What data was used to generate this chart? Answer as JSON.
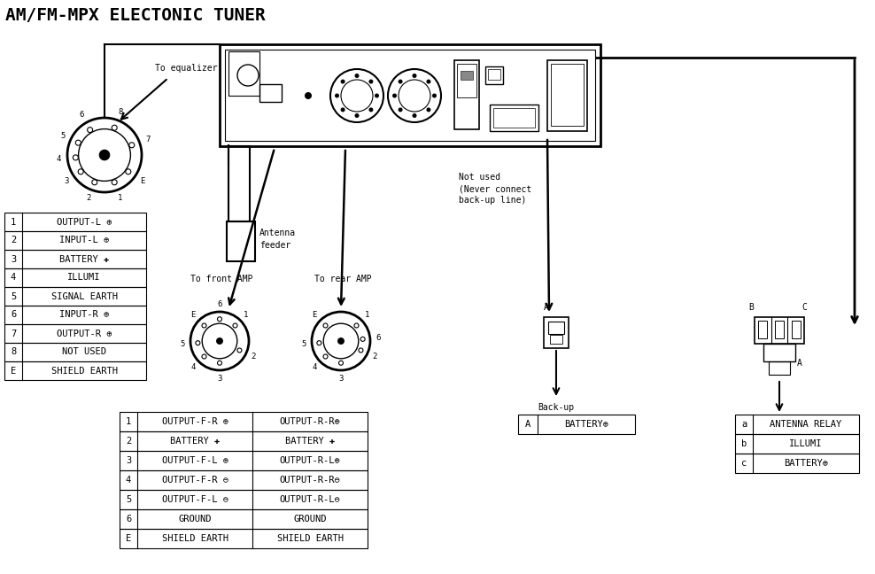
{
  "title": "AM/FM-MPX ELECTONIC TUNER",
  "bg_color": "#ffffff",
  "lc": "#000000",
  "title_fontsize": 14,
  "label_fontsize": 7.5,
  "small_fontsize": 7,
  "left_table_rows": [
    [
      "1",
      "OUTPUT-L ⊕"
    ],
    [
      "2",
      "INPUT-L ⊕"
    ],
    [
      "3",
      "BATTERY ✚"
    ],
    [
      "4",
      "ILLUMI"
    ],
    [
      "5",
      "SIGNAL EARTH"
    ],
    [
      "6",
      "INPUT-R ⊕"
    ],
    [
      "7",
      "OUTPUT-R ⊕"
    ],
    [
      "8",
      "NOT USED"
    ],
    [
      "E",
      "SHIELD EARTH"
    ]
  ],
  "center_table_rows": [
    [
      "1",
      "OUTPUT-F-R ⊕",
      "OUTPUT-R-R⊕"
    ],
    [
      "2",
      "BATTERY ✚",
      "BATTERY ✚"
    ],
    [
      "3",
      "OUTPUT-F-L ⊕",
      "OUTPUT-R-L⊕"
    ],
    [
      "4",
      "OUTPUT-F-R ⊖",
      "OUTPUT-R-R⊖"
    ],
    [
      "5",
      "OUTPUT-F-L ⊖",
      "OUTPUT-R-L⊖"
    ],
    [
      "6",
      "GROUND",
      "GROUND"
    ],
    [
      "E",
      "SHIELD EARTH",
      "SHIELD EARTH"
    ]
  ],
  "backup_table_rows": [
    [
      "A",
      "BATTERY⊕"
    ]
  ],
  "antenna_table_rows": [
    [
      "a",
      "ANTENNA RELAY"
    ],
    [
      "b",
      "ILLUMI"
    ],
    [
      "c",
      "BATTERY⊕"
    ]
  ],
  "eq_pins": [
    [
      "8",
      65
    ],
    [
      "7",
      20
    ],
    [
      "6",
      115
    ],
    [
      "5",
      150
    ],
    [
      "4",
      190
    ],
    [
      "3",
      220
    ],
    [
      "2",
      255
    ],
    [
      "1",
      295
    ],
    [
      "E",
      340
    ]
  ],
  "front_amp_pins": [
    [
      "E",
      130
    ],
    [
      "1",
      50
    ],
    [
      "2",
      330
    ],
    [
      "3",
      270
    ],
    [
      "4",
      220
    ],
    [
      "5",
      180
    ],
    [
      "6",
      90
    ]
  ],
  "rear_amp_pins": [
    [
      "E",
      130
    ],
    [
      "1",
      50
    ],
    [
      "6",
      10
    ],
    [
      "2",
      330
    ],
    [
      "3",
      270
    ],
    [
      "4",
      220
    ],
    [
      "5",
      180
    ]
  ]
}
